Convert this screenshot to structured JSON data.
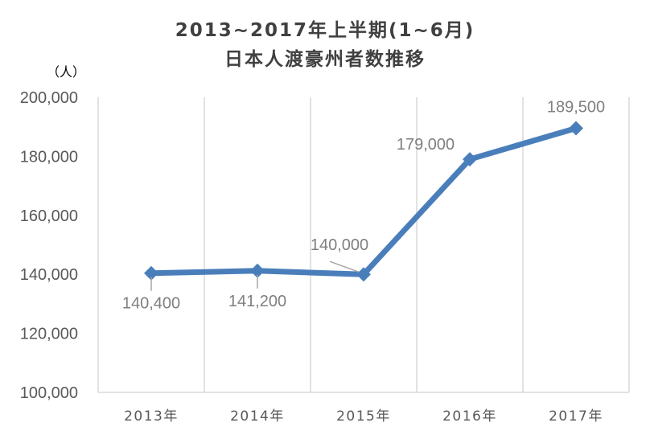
{
  "chart_data": {
    "type": "line",
    "title": "2013~2017年上半期(1~6月)",
    "subtitle": "日本人渡豪州者数推移",
    "unit_label": "（人）",
    "categories": [
      "2013年",
      "2014年",
      "2015年",
      "2016年",
      "2017年"
    ],
    "values": [
      140400,
      141200,
      140000,
      179000,
      189500
    ],
    "data_labels": [
      "140,400",
      "141,200",
      "140,000",
      "179,000",
      "189,500"
    ],
    "ylim": [
      100000,
      200000
    ],
    "yticks": [
      100000,
      120000,
      140000,
      160000,
      180000,
      200000
    ],
    "ytick_labels": [
      "100,000",
      "120,000",
      "140,000",
      "160,000",
      "180,000",
      "200,000"
    ],
    "grid": "vertical",
    "legend": "none",
    "series_color": "#4a7ebb",
    "marker": "diamond"
  }
}
